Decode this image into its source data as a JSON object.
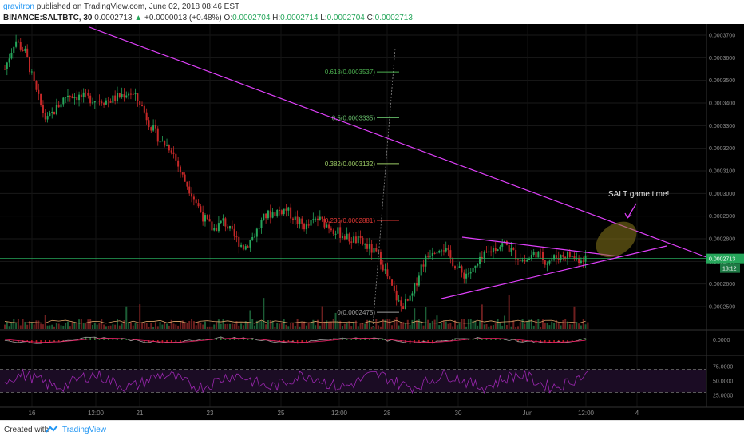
{
  "header": {
    "user": "gravitron",
    "published": "published on TradingView.com, June 02, 2018 08:46 EST",
    "symbol": "BINANCE:SALTBTC, 30",
    "last": "0.0002713",
    "change": "+0.0000013 (+0.48%)",
    "open_label": "O:",
    "open": "0.0002704",
    "high_label": "H:",
    "high": "0.0002714",
    "low_label": "L:",
    "low": "0.0002704",
    "close_label": "C:",
    "close": "0.0002713"
  },
  "footer": {
    "created": "Created with",
    "brand": "TradingView"
  },
  "colors": {
    "background": "#000000",
    "up": "#26a65b",
    "down": "#c62828",
    "trendline": "#e040fb",
    "price_line": "#26a65b",
    "rsi": "#9c27b0",
    "macd": "#9e9e9e",
    "signal": "#e91e63",
    "ellipse": "#8a7a1c"
  },
  "chart_data": {
    "type": "candlestick",
    "symbol": "BINANCE:SALTBTC",
    "interval": "30",
    "y_axis": {
      "ticks": [
        "0.0003700",
        "0.0003600",
        "0.0003500",
        "0.0003400",
        "0.0003300",
        "0.0003200",
        "0.0003100",
        "0.0003000",
        "0.0002900",
        "0.0002800",
        "0.0002700",
        "0.0002600",
        "0.0002500"
      ],
      "ylim": [
        0.00024,
        0.000376
      ]
    },
    "x_axis": {
      "ticks": [
        "16",
        "12:00",
        "21",
        "23",
        "25",
        "12:00",
        "28",
        "30",
        "Jun",
        "12:00",
        "4"
      ]
    },
    "current_price": "0.0002713",
    "countdown": "13:12",
    "price_path": [
      [
        0,
        0.000355
      ],
      [
        1,
        0.000368
      ],
      [
        2,
        0.000362
      ],
      [
        3,
        0.000345
      ],
      [
        4,
        0.000332
      ],
      [
        5,
        0.000338
      ],
      [
        6,
        0.000344
      ],
      [
        8,
        0.000342
      ],
      [
        10,
        0.000341
      ],
      [
        12,
        0.000345
      ],
      [
        13,
        0.00034
      ],
      [
        14,
        0.00033
      ],
      [
        15,
        0.000323
      ],
      [
        16,
        0.00032
      ],
      [
        17,
        0.000308
      ],
      [
        18,
        0.0003
      ],
      [
        19,
        0.00029
      ],
      [
        20,
        0.000284
      ],
      [
        21,
        0.000288
      ],
      [
        22,
        0.000281
      ],
      [
        23,
        0.000276
      ],
      [
        24,
        0.000282
      ],
      [
        25,
        0.00029
      ],
      [
        26,
        0.000292
      ],
      [
        27,
        0.000293
      ],
      [
        28,
        0.000288
      ],
      [
        29,
        0.000285
      ],
      [
        30,
        0.000289
      ],
      [
        31,
        0.000286
      ],
      [
        32,
        0.000283
      ],
      [
        33,
        0.00028
      ],
      [
        34,
        0.000279
      ],
      [
        35,
        0.000276
      ],
      [
        36,
        0.000272
      ],
      [
        37,
        0.00026
      ],
      [
        38,
        0.00025
      ],
      [
        39,
        0.000253
      ],
      [
        40,
        0.000268
      ],
      [
        41,
        0.000275
      ],
      [
        42,
        0.000277
      ],
      [
        43,
        0.00027
      ],
      [
        44,
        0.000264
      ],
      [
        45,
        0.000266
      ],
      [
        46,
        0.000272
      ],
      [
        47,
        0.000276
      ],
      [
        48,
        0.000278
      ],
      [
        49,
        0.000273
      ],
      [
        50,
        0.00027
      ],
      [
        51,
        0.000274
      ],
      [
        52,
        0.00027
      ],
      [
        53,
        0.000272
      ],
      [
        54,
        0.000273
      ],
      [
        55,
        0.000271
      ],
      [
        56,
        0.000272
      ]
    ],
    "fib_levels": [
      {
        "label": "0.618(0.0003537)",
        "value": 0.0003537,
        "color": "#4caf50"
      },
      {
        "label": "0.5(0.0003335)",
        "value": 0.0003335,
        "color": "#66bb6a"
      },
      {
        "label": "0.382(0.0003132)",
        "value": 0.0003132,
        "color": "#9ccc65"
      },
      {
        "label": "0.236(0.0002881)",
        "value": 0.0002881,
        "color": "#e53935"
      },
      {
        "label": "0(0.0002475)",
        "value": 0.0002475,
        "color": "#9e9e9e"
      }
    ],
    "annotations": [
      "SALT game time!"
    ],
    "rsi": {
      "ticks": [
        "75.0000",
        "50.0000",
        "25.0000"
      ],
      "levels": [
        70,
        30
      ]
    },
    "macd": {
      "ticks": [
        "0.0000"
      ]
    }
  }
}
